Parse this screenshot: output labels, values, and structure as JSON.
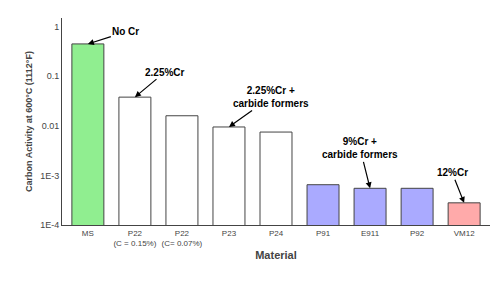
{
  "chart_data": {
    "type": "bar",
    "categories": [
      "MS",
      "P22\n(C = 0.15%)",
      "P22\n(C= 0.07%)",
      "P23",
      "P24",
      "P91",
      "E911",
      "P92",
      "VM12"
    ],
    "values": [
      0.45,
      0.038,
      0.016,
      0.0095,
      0.0075,
      0.00065,
      0.00055,
      0.00055,
      0.00028
    ],
    "colors": [
      "#90ee90",
      "#ffffff",
      "#ffffff",
      "#ffffff",
      "#ffffff",
      "#aaaaff",
      "#aaaaff",
      "#aaaaff",
      "#ffaaaa"
    ],
    "xlabel": "Material",
    "ylabel": "Carbon Activity at 600°C (1112°F)",
    "log": "y",
    "ylim": [
      0.0001,
      1.5
    ],
    "yticks": [
      {
        "value": 0.0001,
        "label": "1E-4"
      },
      {
        "value": 0.001,
        "label": "1E-3"
      },
      0.01,
      0.1,
      1
    ],
    "grid": false,
    "annotations": [
      "No Cr",
      "2.25%Cr",
      "2.25%Cr +\ncarbide formers",
      "9%Cr +\ncarbide formers",
      "12%Cr"
    ]
  }
}
